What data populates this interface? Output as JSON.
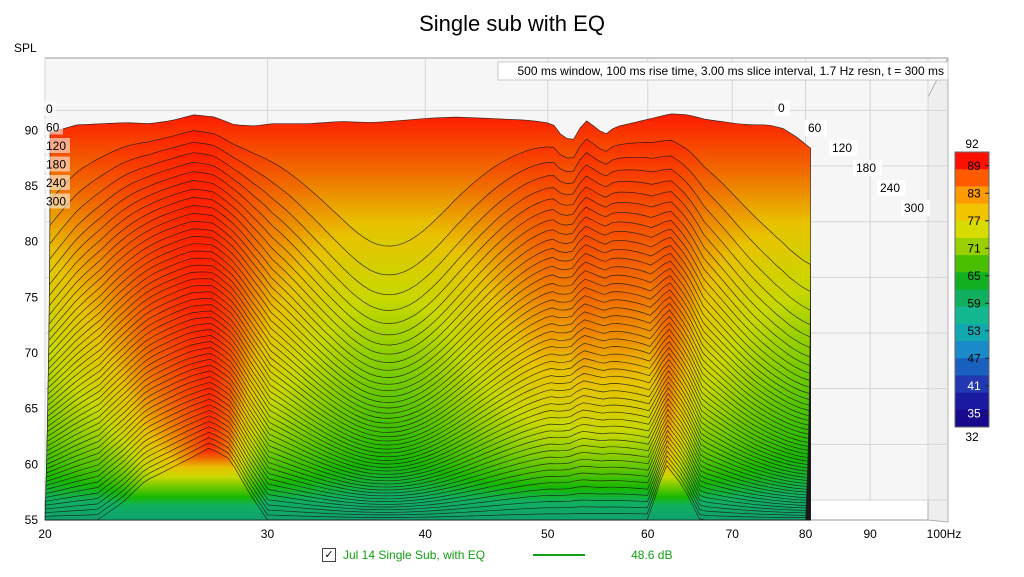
{
  "chart_data": {
    "type": "area",
    "title": "Single sub with EQ",
    "ylabel": "SPL",
    "xlabel": "",
    "x_unit_label": "100Hz",
    "x_scale": "log",
    "xlim": [
      20,
      100
    ],
    "ylim": [
      55,
      93
    ],
    "x_ticks": [
      20,
      30,
      40,
      50,
      60,
      70,
      80,
      90
    ],
    "y_ticks": [
      55,
      60,
      65,
      70,
      75,
      80,
      85,
      90
    ],
    "grid": true,
    "annotation": "500 ms window, 100 ms rise time, 3.00 ms slice interval, 1.7 Hz resn, t = 300 ms",
    "time_axis_labels": [
      "0",
      "60",
      "120",
      "180",
      "240",
      "300"
    ],
    "time_axis_labels_left": [
      "0",
      "60",
      "120",
      "180",
      "240",
      "300"
    ],
    "colorbar": {
      "min": 32,
      "max": 92,
      "ticks": [
        89,
        83,
        77,
        71,
        65,
        59,
        53,
        47,
        41,
        35
      ]
    },
    "series": [
      {
        "name": "Jul 14 Single Sub, with EQ",
        "color": "#12a012",
        "level": "48.6 dB",
        "first_slice_t0": {
          "x": [
            20,
            21,
            22,
            23,
            24,
            25,
            26,
            27,
            28,
            29,
            30,
            32,
            34,
            36,
            38,
            40,
            42,
            44,
            46,
            48,
            50,
            51,
            52,
            53,
            54,
            55,
            56,
            58,
            60,
            62,
            64,
            66,
            68,
            70,
            72,
            74,
            76,
            78,
            80
          ],
          "y": [
            89.8,
            90.5,
            90.6,
            90.7,
            90.6,
            90.9,
            91.4,
            91.2,
            90.5,
            90.4,
            90.6,
            90.6,
            90.8,
            90.7,
            90.9,
            91.1,
            91.2,
            91.1,
            91.0,
            90.9,
            90.6,
            89.3,
            89.2,
            91.0,
            90.3,
            89.6,
            90.3,
            90.7,
            91.1,
            91.5,
            91.4,
            91.0,
            90.8,
            90.6,
            90.5,
            90.5,
            90.2,
            89.4,
            88.4
          ]
        },
        "last_slice_t300": {
          "x": [
            20,
            21,
            22,
            23,
            24,
            25,
            26,
            27,
            28,
            29,
            30,
            32,
            34,
            36,
            38,
            40,
            42,
            44,
            46,
            48,
            50,
            52,
            54,
            56,
            58,
            60,
            62,
            64,
            66,
            68,
            70,
            72,
            74,
            76,
            78,
            80
          ],
          "y": [
            55,
            55,
            55,
            56.5,
            58.5,
            59.5,
            60.5,
            61.5,
            60.5,
            57.5,
            55,
            55,
            55,
            55,
            55,
            55,
            55,
            55,
            55,
            55,
            55,
            55,
            55,
            55,
            55,
            55,
            60,
            58,
            55,
            55,
            55,
            55,
            55,
            55,
            55,
            55
          ]
        }
      }
    ]
  },
  "legend": {
    "checkbox_mark": "✓",
    "label": "Jul 14 Single Sub, with EQ",
    "level": "48.6 dB"
  }
}
